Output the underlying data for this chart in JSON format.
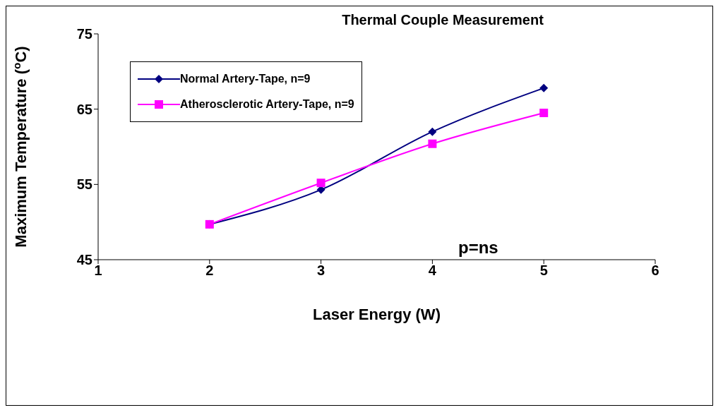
{
  "chart_data": {
    "type": "line",
    "title": "Thermal Couple Measurement",
    "xlabel": "Laser Energy (W)",
    "ylabel": "Maximum Temperature ($^{o}$C)",
    "x": [
      2,
      3,
      4,
      5
    ],
    "series": [
      {
        "name": "Normal Artery-Tape, n=9",
        "color": "#000080",
        "marker": "diamond",
        "values": [
          49.7,
          54.3,
          62.0,
          67.8
        ]
      },
      {
        "name": "Atherosclerotic Artery-Tape, n=9",
        "color": "#ff00ff",
        "marker": "square",
        "values": [
          49.7,
          55.2,
          60.4,
          64.5
        ]
      }
    ],
    "xlim": [
      1,
      6
    ],
    "xticks": [
      1,
      2,
      3,
      4,
      5,
      6
    ],
    "ylim": [
      45,
      75
    ],
    "yticks": [
      45,
      55,
      65,
      75
    ],
    "grid": false,
    "legend": "top left",
    "annotations": [
      "p=ns"
    ]
  }
}
